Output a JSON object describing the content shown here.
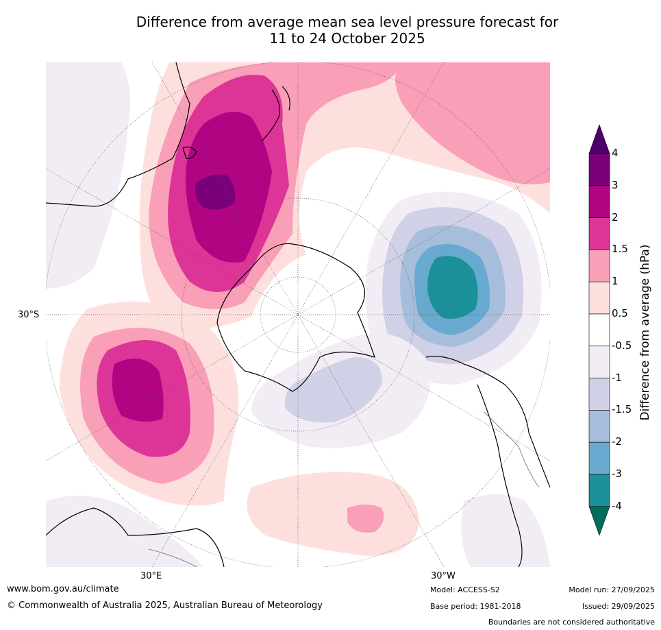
{
  "title": {
    "line1": "Difference from average mean sea level pressure forecast for",
    "line2": "11 to 24 October 2025"
  },
  "map": {
    "projection": "south-polar-stereographic",
    "labels": {
      "lat_30s": "30°S",
      "lon_30e": "30°E",
      "lon_30w": "30°W"
    }
  },
  "colorbar": {
    "title": "Difference from average (hPa)",
    "tick_labels": [
      "4",
      "3",
      "2",
      "1.5",
      "1",
      "0.5",
      "-0.5",
      "-1",
      "-1.5",
      "-2",
      "-3",
      "-4"
    ],
    "bins": [
      {
        "range": ">4",
        "color": "#4d006b"
      },
      {
        "range": "3 to 4",
        "color": "#7a0079"
      },
      {
        "range": "2 to 3",
        "color": "#b00482"
      },
      {
        "range": "1.5 to 2",
        "color": "#dd3497"
      },
      {
        "range": "1 to 1.5",
        "color": "#f99fb8"
      },
      {
        "range": "0.5 to 1",
        "color": "#fde0dd"
      },
      {
        "range": "-0.5 to 0.5",
        "color": "#ffffff"
      },
      {
        "range": "-1 to -0.5",
        "color": "#f2ecf5"
      },
      {
        "range": "-1.5 to -1",
        "color": "#d0d1e6"
      },
      {
        "range": "-2 to -1.5",
        "color": "#a6bddb"
      },
      {
        "range": "-3 to -2",
        "color": "#67a9cf"
      },
      {
        "range": "-4 to -3",
        "color": "#1c9099"
      },
      {
        "range": "<-4",
        "color": "#016c59"
      }
    ]
  },
  "footer": {
    "website": "www.bom.gov.au/climate",
    "copyright": "© Commonwealth of Australia 2025, Australian Bureau of Meteorology",
    "model": "Model: ACCESS-S2",
    "base_period": "Base period: 1981-2018",
    "model_run": "Model run: 27/09/2025",
    "issued": "Issued: 29/09/2025",
    "disclaimer": "Boundaries are not considered authoritative"
  }
}
